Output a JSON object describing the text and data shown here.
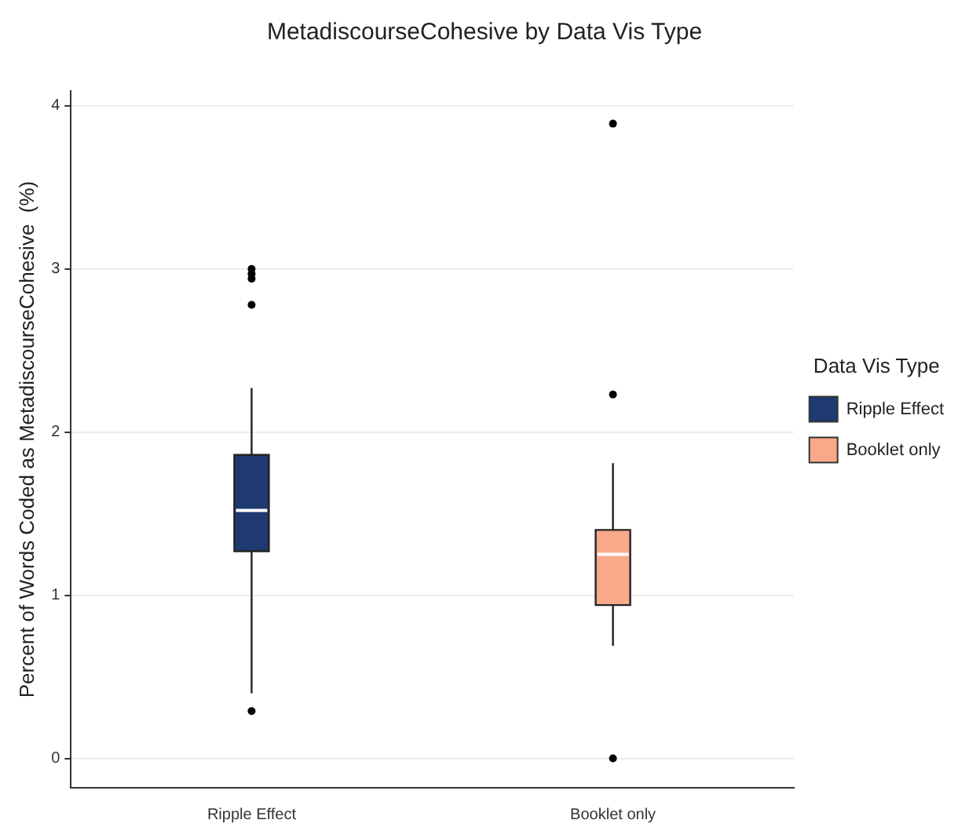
{
  "chart_data": {
    "type": "box",
    "title": "MetadiscourseCohesive by Data Vis Type",
    "ylabel": "Percent of Words Coded as MetadiscourseCohesive  (%)",
    "legend_title": "Data Vis Type",
    "categories": [
      "Ripple Effect",
      "Booklet only"
    ],
    "series": [
      {
        "name": "Ripple Effect",
        "color": "#1f3a70",
        "boxes": [
          {
            "low": 0.4,
            "q1": 1.27,
            "median": 1.52,
            "q3": 1.86,
            "high": 2.27,
            "outliers": [
              0.29,
              2.78,
              2.94,
              2.97,
              3.0
            ]
          },
          null
        ]
      },
      {
        "name": "Booklet only",
        "color": "#f8a98a",
        "boxes": [
          null,
          {
            "low": 0.69,
            "q1": 0.94,
            "median": 1.25,
            "q3": 1.4,
            "high": 1.81,
            "outliers": [
              0.0,
              2.23,
              3.89
            ]
          }
        ]
      }
    ],
    "ylim": [
      -0.18,
      4.09
    ],
    "yticks": [
      0,
      1,
      2,
      3,
      4
    ],
    "grid": "y",
    "legend": "right"
  }
}
